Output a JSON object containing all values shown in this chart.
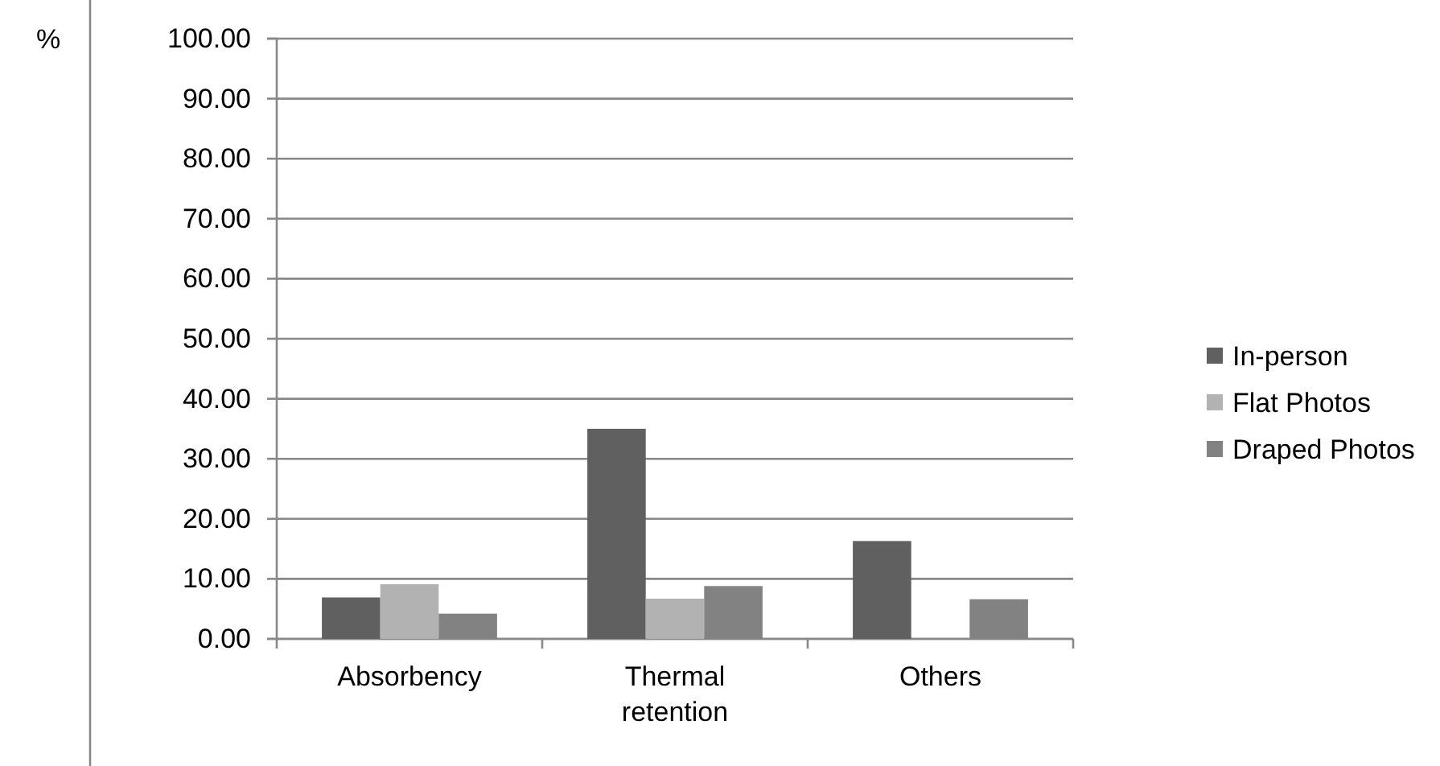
{
  "chart_data": {
    "type": "bar",
    "ylabel": "%",
    "categories": [
      "Absorbency",
      "Thermal retention",
      "Others"
    ],
    "series": [
      {
        "name": "In-person",
        "color": "#606060",
        "values": [
          6.9,
          35.0,
          16.3
        ]
      },
      {
        "name": "Flat Photos",
        "color": "#b2b2b2",
        "values": [
          9.1,
          6.7,
          null
        ]
      },
      {
        "name": "Draped Photos",
        "color": "#828282",
        "values": [
          4.2,
          8.8,
          6.6
        ]
      }
    ],
    "ylim": [
      0,
      100
    ],
    "yticks": [
      {
        "value": 0,
        "label": "0.00"
      },
      {
        "value": 10,
        "label": "10.00"
      },
      {
        "value": 20,
        "label": "20.00"
      },
      {
        "value": 30,
        "label": "30.00"
      },
      {
        "value": 40,
        "label": "40.00"
      },
      {
        "value": 50,
        "label": "50.00"
      },
      {
        "value": 60,
        "label": "60.00"
      },
      {
        "value": 70,
        "label": "70.00"
      },
      {
        "value": 80,
        "label": "80.00"
      },
      {
        "value": 90,
        "label": "90.00"
      },
      {
        "value": 100,
        "label": "100.00"
      }
    ],
    "grid": "y",
    "legend": "right"
  }
}
